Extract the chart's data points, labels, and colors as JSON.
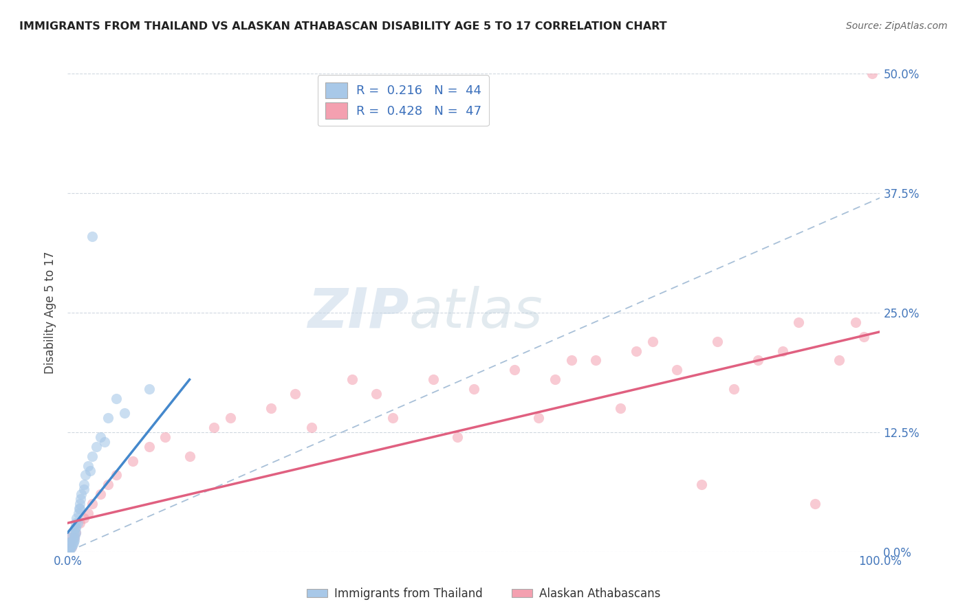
{
  "title": "IMMIGRANTS FROM THAILAND VS ALASKAN ATHABASCAN DISABILITY AGE 5 TO 17 CORRELATION CHART",
  "source": "Source: ZipAtlas.com",
  "ylabel": "Disability Age 5 to 17",
  "legend_bottom": [
    "Immigrants from Thailand",
    "Alaskan Athabascans"
  ],
  "r_blue": 0.216,
  "n_blue": 44,
  "r_pink": 0.428,
  "n_pink": 47,
  "blue_color": "#a8c8e8",
  "pink_color": "#f4a0b0",
  "blue_line_color": "#4488cc",
  "pink_line_color": "#e06080",
  "dash_line_color": "#a8c0d8",
  "watermark_zip": "ZIP",
  "watermark_atlas": "atlas",
  "xlim": [
    0.0,
    100.0
  ],
  "ylim": [
    0.0,
    50.0
  ],
  "xticks": [
    0.0,
    100.0
  ],
  "yticks": [
    0.0,
    12.5,
    25.0,
    37.5,
    50.0
  ],
  "xtick_labels": [
    "0.0%",
    "100.0%"
  ],
  "ytick_labels_right": [
    "0.0%",
    "12.5%",
    "25.0%",
    "37.5%",
    "50.0%"
  ],
  "blue_x": [
    0.1,
    0.15,
    0.2,
    0.25,
    0.3,
    0.35,
    0.4,
    0.5,
    0.5,
    0.6,
    0.7,
    0.7,
    0.8,
    0.9,
    1.0,
    1.0,
    1.1,
    1.2,
    1.3,
    1.4,
    1.5,
    1.7,
    2.0,
    2.2,
    2.5,
    3.0,
    3.5,
    4.0,
    5.0,
    6.0,
    0.3,
    0.6,
    0.8,
    1.0,
    1.5,
    2.0,
    0.4,
    0.9,
    1.6,
    2.8,
    4.5,
    7.0,
    10.0,
    3.0
  ],
  "blue_y": [
    0.5,
    0.8,
    1.0,
    0.3,
    0.5,
    0.8,
    1.0,
    1.5,
    0.5,
    1.2,
    2.0,
    1.0,
    1.5,
    2.5,
    2.0,
    3.0,
    3.5,
    3.0,
    4.0,
    4.5,
    5.0,
    6.0,
    7.0,
    8.0,
    9.0,
    10.0,
    11.0,
    12.0,
    14.0,
    16.0,
    0.3,
    0.8,
    1.2,
    2.5,
    4.5,
    6.5,
    0.6,
    1.8,
    5.5,
    8.5,
    11.5,
    14.5,
    17.0,
    33.0
  ],
  "pink_x": [
    0.2,
    0.5,
    0.8,
    1.0,
    1.5,
    2.0,
    2.5,
    3.0,
    4.0,
    5.0,
    6.0,
    8.0,
    10.0,
    12.0,
    15.0,
    18.0,
    20.0,
    25.0,
    28.0,
    30.0,
    35.0,
    38.0,
    40.0,
    45.0,
    48.0,
    50.0,
    55.0,
    58.0,
    60.0,
    62.0,
    65.0,
    68.0,
    70.0,
    72.0,
    75.0,
    78.0,
    80.0,
    82.0,
    85.0,
    88.0,
    90.0,
    92.0,
    95.0,
    97.0,
    98.0,
    0.3,
    99.0
  ],
  "pink_y": [
    1.0,
    0.5,
    1.5,
    2.0,
    3.0,
    3.5,
    4.0,
    5.0,
    6.0,
    7.0,
    8.0,
    9.5,
    11.0,
    12.0,
    10.0,
    13.0,
    14.0,
    15.0,
    16.5,
    13.0,
    18.0,
    16.5,
    14.0,
    18.0,
    12.0,
    17.0,
    19.0,
    14.0,
    18.0,
    20.0,
    20.0,
    15.0,
    21.0,
    22.0,
    19.0,
    7.0,
    22.0,
    17.0,
    20.0,
    21.0,
    24.0,
    5.0,
    20.0,
    24.0,
    22.5,
    1.5,
    50.0
  ],
  "blue_line_x": [
    0.0,
    15.0
  ],
  "blue_line_y": [
    2.0,
    18.0
  ],
  "pink_line_x": [
    0.0,
    100.0
  ],
  "pink_line_y": [
    3.0,
    23.0
  ]
}
